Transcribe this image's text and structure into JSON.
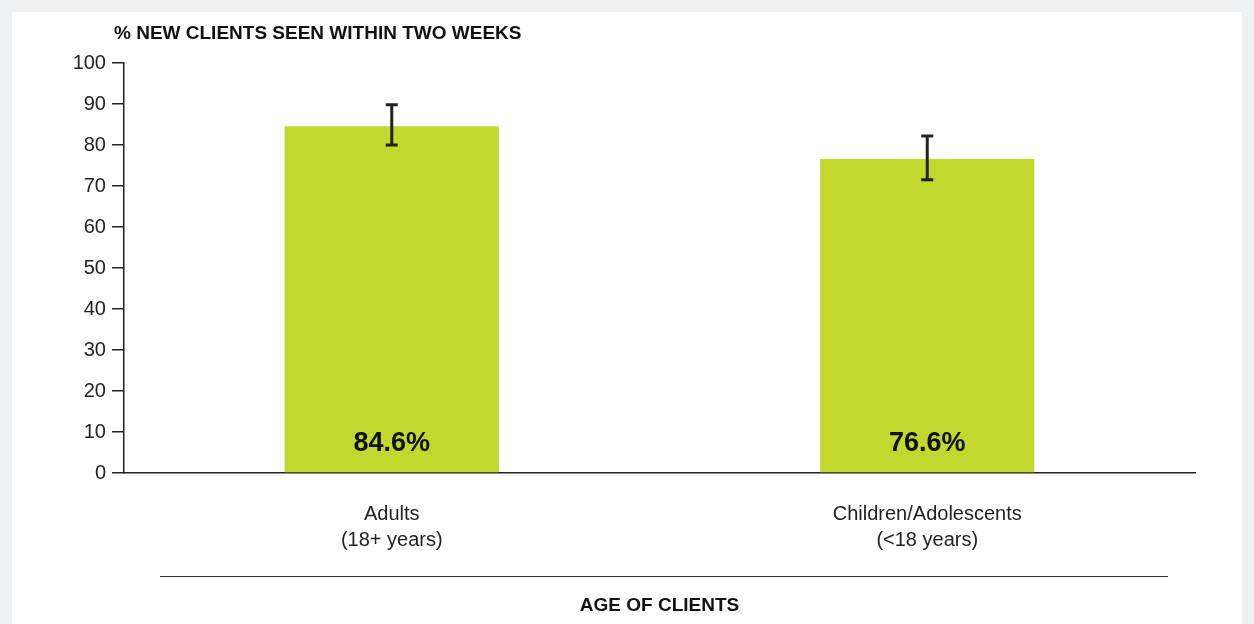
{
  "chart_data": {
    "type": "bar",
    "ylabel": "% NEW CLIENTS SEEN WITHIN TWO WEEKS",
    "xlabel": "AGE OF CLIENTS",
    "categories": [
      "Adults\n(18+ years)",
      "Children/Adolescents\n(<18 years)"
    ],
    "values": [
      84.6,
      76.6
    ],
    "color": "#c2d82e",
    "errors": [
      [
        80.0,
        89.8
      ],
      [
        71.5,
        82.2
      ]
    ],
    "value_labels": [
      "84.6%",
      "76.6%"
    ],
    "ylim": [
      0,
      100
    ],
    "yticks": [
      0,
      10,
      20,
      30,
      40,
      50,
      60,
      70,
      80,
      90,
      100
    ],
    "grid": false,
    "legend": false
  }
}
